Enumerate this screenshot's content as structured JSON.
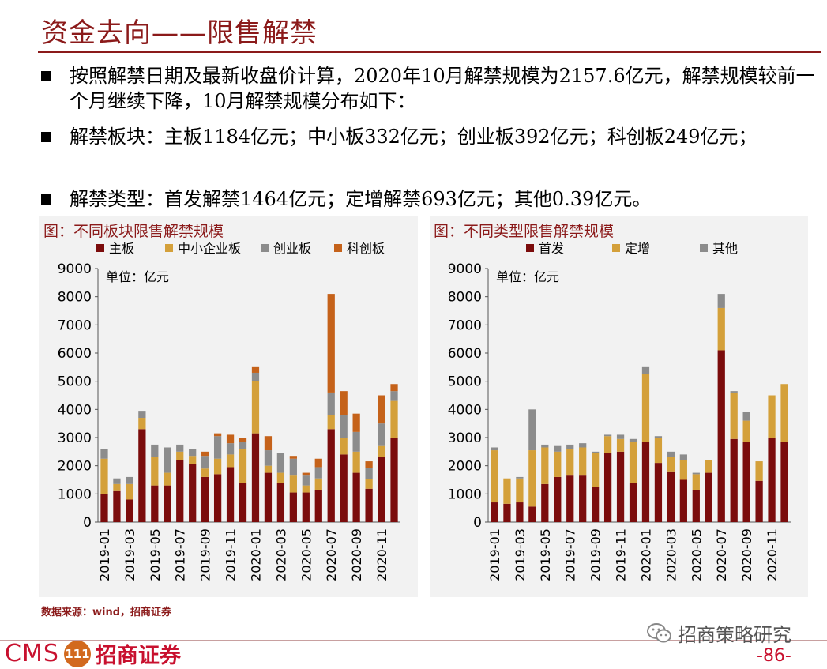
{
  "page": {
    "title": "资金去向——限售解禁",
    "bullets": [
      "按照解禁日期及最新收盘价计算，2020年10月解禁规模为2157.6亿元，解禁规模较前一个月继续下降，10月解禁规模分布如下：",
      "解禁板块：主板1184亿元；中小板332亿元；创业板392亿元；科创板249亿元；",
      "解禁类型：首发解禁1464亿元；定增解禁693亿元；其他0.39亿元。"
    ],
    "source": "数据来源：wind，招商证券",
    "logo_cms": "CMS",
    "logo_mark": "111",
    "logo_cn": "招商证券",
    "wechat_account": "招商策略研究",
    "page_number": "-86-"
  },
  "colors": {
    "brand": "#8b1a1a",
    "main_board": "#7b0c0c",
    "sme_board": "#d4a03a",
    "chinext": "#8c8c8c",
    "star": "#c5621a"
  },
  "chart_data": [
    {
      "type": "bar",
      "stacked": true,
      "title": "图：不同板块限售解禁规模",
      "unit_note": "单位：亿元",
      "ylim": [
        0,
        9000
      ],
      "yticks": [
        0,
        1000,
        2000,
        3000,
        4000,
        5000,
        6000,
        7000,
        8000,
        9000
      ],
      "legend_position": "top",
      "categories": [
        "2019-01",
        "2019-02",
        "2019-03",
        "2019-04",
        "2019-05",
        "2019-06",
        "2019-07",
        "2019-08",
        "2019-09",
        "2019-10",
        "2019-11",
        "2019-12",
        "2020-01",
        "2020-02",
        "2020-03",
        "2020-04",
        "2020-05",
        "2020-06",
        "2020-07",
        "2020-08",
        "2020-09",
        "2020-10",
        "2020-11",
        "2020-12"
      ],
      "tick_labels": [
        "2019-01",
        "2019-03",
        "2019-05",
        "2019-07",
        "2019-09",
        "2019-11",
        "2020-01",
        "2020-03",
        "2020-05",
        "2020-07",
        "2020-09",
        "2020-11"
      ],
      "series": [
        {
          "name": "主板",
          "color": "#7b0c0c",
          "values": [
            1000,
            1100,
            800,
            3300,
            1300,
            1300,
            2200,
            2050,
            1600,
            1700,
            1950,
            1400,
            3150,
            1750,
            1400,
            1050,
            1050,
            1150,
            3300,
            2400,
            1750,
            1184,
            2300,
            3000
          ]
        },
        {
          "name": "中小企业板",
          "color": "#d4a03a",
          "values": [
            1250,
            250,
            550,
            400,
            1000,
            450,
            300,
            300,
            300,
            550,
            450,
            1200,
            1850,
            250,
            350,
            600,
            250,
            400,
            500,
            600,
            750,
            332,
            400,
            1300
          ]
        },
        {
          "name": "创业板",
          "color": "#8c8c8c",
          "values": [
            350,
            200,
            250,
            250,
            450,
            900,
            250,
            250,
            450,
            800,
            400,
            250,
            300,
            550,
            700,
            600,
            350,
            400,
            800,
            800,
            700,
            392,
            800,
            350
          ]
        },
        {
          "name": "科创板",
          "color": "#c5621a",
          "values": [
            0,
            0,
            0,
            0,
            0,
            0,
            0,
            0,
            150,
            100,
            300,
            150,
            200,
            500,
            0,
            100,
            100,
            300,
            3500,
            850,
            650,
            249,
            1000,
            250
          ]
        }
      ]
    },
    {
      "type": "bar",
      "stacked": true,
      "title": "图：不同类型限售解禁规模",
      "unit_note": "单位：亿元",
      "ylim": [
        0,
        9000
      ],
      "yticks": [
        0,
        1000,
        2000,
        3000,
        4000,
        5000,
        6000,
        7000,
        8000,
        9000
      ],
      "legend_position": "top",
      "categories": [
        "2019-01",
        "2019-02",
        "2019-03",
        "2019-04",
        "2019-05",
        "2019-06",
        "2019-07",
        "2019-08",
        "2019-09",
        "2019-10",
        "2019-11",
        "2019-12",
        "2020-01",
        "2020-02",
        "2020-03",
        "2020-04",
        "2020-05",
        "2020-06",
        "2020-07",
        "2020-08",
        "2020-09",
        "2020-10",
        "2020-11",
        "2020-12"
      ],
      "tick_labels": [
        "2019-01",
        "2019-03",
        "2019-05",
        "2019-07",
        "2019-09",
        "2019-11",
        "2020-01",
        "2020-03",
        "2020-05",
        "2020-07",
        "2020-09",
        "2020-11"
      ],
      "series": [
        {
          "name": "首发",
          "color": "#7b0c0c",
          "values": [
            700,
            650,
            700,
            550,
            1350,
            1600,
            1650,
            1650,
            1250,
            2450,
            2500,
            1400,
            2850,
            2100,
            1800,
            1500,
            1150,
            1750,
            6100,
            2950,
            2850,
            1464,
            3000,
            2850
          ]
        },
        {
          "name": "定增",
          "color": "#d4a03a",
          "values": [
            1850,
            900,
            850,
            2000,
            1300,
            900,
            950,
            1000,
            1200,
            600,
            450,
            1450,
            2400,
            900,
            500,
            700,
            550,
            450,
            1500,
            1650,
            750,
            693,
            1500,
            2050
          ]
        },
        {
          "name": "其他",
          "color": "#8c8c8c",
          "values": [
            100,
            0,
            50,
            1450,
            100,
            200,
            150,
            150,
            50,
            50,
            150,
            100,
            250,
            50,
            200,
            200,
            50,
            0,
            500,
            50,
            300,
            0.39,
            0,
            0
          ]
        }
      ]
    }
  ]
}
